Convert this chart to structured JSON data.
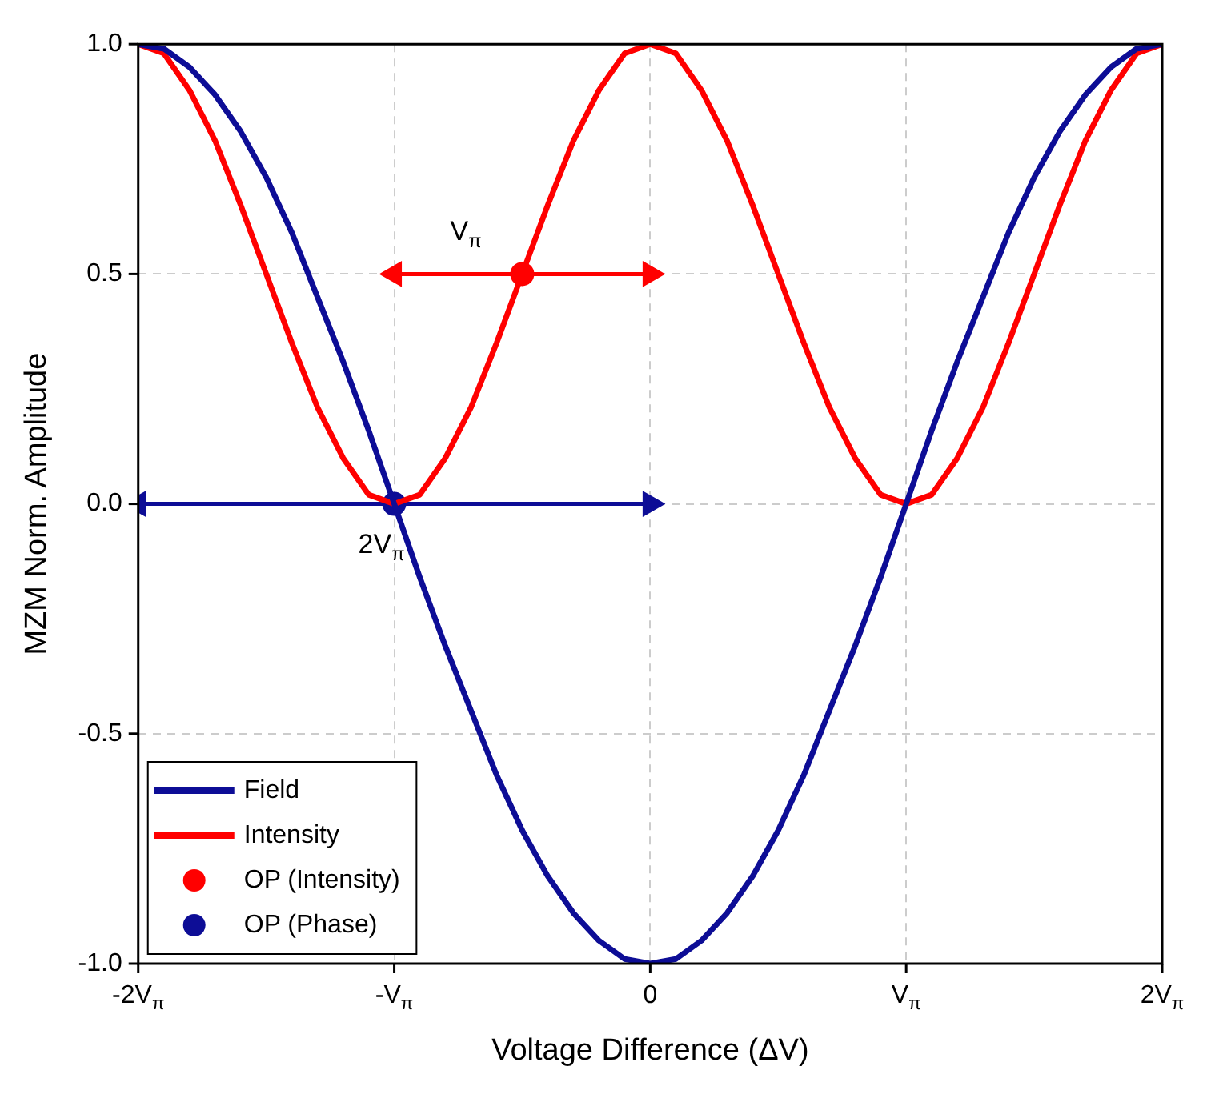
{
  "chart_data": {
    "type": "line",
    "xlabel": "Voltage Difference (ΔV)",
    "ylabel": "MZM Norm. Amplitude",
    "xlim": [
      -2,
      2
    ],
    "ylim": [
      -1,
      1
    ],
    "xticks": [
      {
        "value": -2,
        "label": "-2V$_{π}$"
      },
      {
        "value": -1,
        "label": "-V$_{π}$"
      },
      0,
      {
        "value": 1,
        "label": "V$_{π}$"
      },
      {
        "value": 2,
        "label": "2V$_{π}$"
      }
    ],
    "yticks": [
      {
        "value": -1,
        "label": "-1.0"
      },
      {
        "value": -0.5,
        "label": "-0.5"
      },
      {
        "value": 0,
        "label": "0.0"
      },
      {
        "value": 0.5,
        "label": "0.5"
      },
      {
        "value": 1,
        "label": "1.0"
      }
    ],
    "grid": true,
    "legend": "bottom left",
    "line_style": "solid",
    "x": [
      -2,
      -1.9,
      -1.8,
      -1.7,
      -1.6,
      -1.5,
      -1.4,
      -1.3,
      -1.2,
      -1.1,
      -1,
      -0.9,
      -0.8,
      -0.7,
      -0.6,
      -0.5,
      -0.4,
      -0.3,
      -0.2,
      -0.1,
      0,
      0.1,
      0.2,
      0.3,
      0.4,
      0.5,
      0.6,
      0.7,
      0.8,
      0.9,
      1,
      1.1,
      1.2,
      1.3,
      1.4,
      1.5,
      1.6,
      1.7,
      1.8,
      1.9,
      2
    ],
    "series": [
      {
        "name": "Field",
        "type": "line",
        "color": "#0d0d96",
        "values": [
          1,
          0.99,
          0.95,
          0.89,
          0.81,
          0.71,
          0.59,
          0.45,
          0.31,
          0.16,
          0,
          -0.16,
          -0.31,
          -0.45,
          -0.59,
          -0.71,
          -0.81,
          -0.89,
          -0.95,
          -0.99,
          -1,
          -0.99,
          -0.95,
          -0.89,
          -0.81,
          -0.71,
          -0.59,
          -0.45,
          -0.31,
          -0.16,
          0,
          0.16,
          0.31,
          0.45,
          0.59,
          0.71,
          0.81,
          0.89,
          0.95,
          0.99,
          1
        ]
      },
      {
        "name": "Intensity",
        "type": "line",
        "color": "#ff0000",
        "values": [
          1,
          0.98,
          0.9,
          0.79,
          0.65,
          0.5,
          0.35,
          0.21,
          0.1,
          0.02,
          0,
          0.02,
          0.1,
          0.21,
          0.35,
          0.5,
          0.65,
          0.79,
          0.9,
          0.98,
          1,
          0.98,
          0.9,
          0.79,
          0.65,
          0.5,
          0.35,
          0.21,
          0.1,
          0.02,
          0,
          0.02,
          0.1,
          0.21,
          0.35,
          0.5,
          0.65,
          0.79,
          0.9,
          0.98,
          1
        ]
      },
      {
        "name": "OP (Intensity)",
        "type": "scatter",
        "marker": "circle",
        "color": "#ff0000",
        "x": [
          -0.5
        ],
        "values": [
          0.5
        ]
      },
      {
        "name": "OP (Phase)",
        "type": "scatter",
        "marker": "circle",
        "color": "#0d0d96",
        "x": [
          -1
        ],
        "values": [
          0
        ]
      },
      {
        "type": "line",
        "marker": "triangle",
        "color": "#ff0000",
        "x": [
          -1,
          0
        ],
        "values": [
          0.5,
          0.5
        ]
      },
      {
        "type": "line",
        "marker": "triangle",
        "color": "#0d0d96",
        "x": [
          -2,
          0
        ],
        "values": [
          0,
          0
        ]
      }
    ],
    "annotations": [
      {
        "text": "V$_{π}$",
        "x": -0.72,
        "y": 0.5
      },
      {
        "text": "2V$_{π}$",
        "x": -1.05,
        "y": 0
      }
    ]
  }
}
